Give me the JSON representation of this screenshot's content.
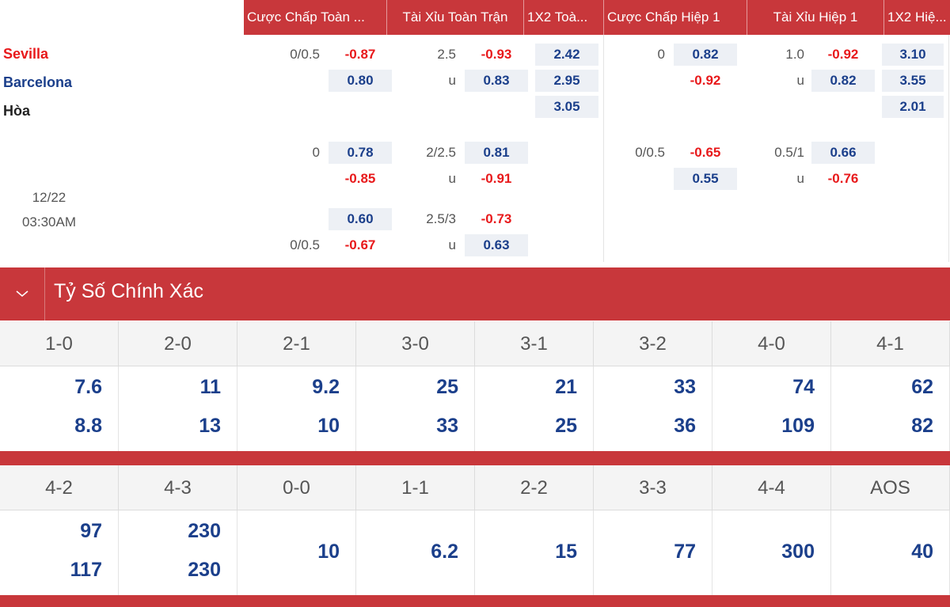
{
  "odds_table": {
    "headers": {
      "hdp_full": "Cược Chấp Toàn ...",
      "ou_full": "Tài Xỉu Toàn Trận",
      "x12_full": "1X2 Toà...",
      "hdp_half": "Cược Chấp Hiệp 1",
      "ou_half": "Tài Xỉu Hiệp 1",
      "x12_half": "1X2 Hiệ..."
    },
    "teams": {
      "home": "Sevilla",
      "away": "Barcelona",
      "draw": "Hòa"
    },
    "match_date": "12/22",
    "match_time": "03:30AM",
    "rows": {
      "r1": {
        "hdp_full_line": "0/0.5",
        "hdp_full_home": "-0.87",
        "hdp_full_away": "0.80",
        "ou_full_line": "2.5",
        "ou_full_over": "-0.93",
        "ou_full_u_label": "u",
        "ou_full_under": "0.83",
        "x12_full_home": "2.42",
        "x12_full_away": "2.95",
        "x12_full_draw": "3.05",
        "hdp_half_line": "0",
        "hdp_half_home": "0.82",
        "hdp_half_away": "-0.92",
        "ou_half_line": "1.0",
        "ou_half_over": "-0.92",
        "ou_half_u_label": "u",
        "ou_half_under": "0.82",
        "x12_half_home": "3.10",
        "x12_half_away": "3.55",
        "x12_half_draw": "2.01"
      },
      "r2": {
        "hdp_full_line": "0",
        "hdp_full_home": "0.78",
        "hdp_full_away": "-0.85",
        "ou_full_line": "2/2.5",
        "ou_full_over": "0.81",
        "ou_full_u_label": "u",
        "ou_full_under": "-0.91",
        "hdp_half_line": "0/0.5",
        "hdp_half_home": "-0.65",
        "hdp_half_away": "0.55",
        "ou_half_line": "0.5/1",
        "ou_half_over": "0.66",
        "ou_half_u_label": "u",
        "ou_half_under": "-0.76"
      },
      "r3": {
        "hdp_full_line": "0/0.5",
        "hdp_full_home": "0.60",
        "hdp_full_away": "-0.67",
        "ou_full_line": "2.5/3",
        "ou_full_over": "-0.73",
        "ou_full_u_label": "u",
        "ou_full_under": "0.63"
      }
    }
  },
  "exact_score": {
    "title": "Tỷ Số Chính Xác",
    "row1": [
      {
        "score": "1-0",
        "a": "7.6",
        "b": "8.8"
      },
      {
        "score": "2-0",
        "a": "11",
        "b": "13"
      },
      {
        "score": "2-1",
        "a": "9.2",
        "b": "10"
      },
      {
        "score": "3-0",
        "a": "25",
        "b": "33"
      },
      {
        "score": "3-1",
        "a": "21",
        "b": "25"
      },
      {
        "score": "3-2",
        "a": "33",
        "b": "36"
      },
      {
        "score": "4-0",
        "a": "74",
        "b": "109"
      },
      {
        "score": "4-1",
        "a": "62",
        "b": "82"
      }
    ],
    "row2": [
      {
        "score": "4-2",
        "a": "97",
        "b": "117"
      },
      {
        "score": "4-3",
        "a": "230",
        "b": "230"
      },
      {
        "score": "0-0",
        "single": "10"
      },
      {
        "score": "1-1",
        "single": "6.2"
      },
      {
        "score": "2-2",
        "single": "15"
      },
      {
        "score": "3-3",
        "single": "77"
      },
      {
        "score": "4-4",
        "single": "300"
      },
      {
        "score": "AOS",
        "single": "40"
      }
    ]
  },
  "colors": {
    "brand_red": "#c8373b",
    "odd_blue": "#1b3f8b",
    "odd_red": "#e8191b",
    "odd_box": "#edf0f5"
  },
  "icons": {
    "collapse": "chevron-down-icon"
  }
}
